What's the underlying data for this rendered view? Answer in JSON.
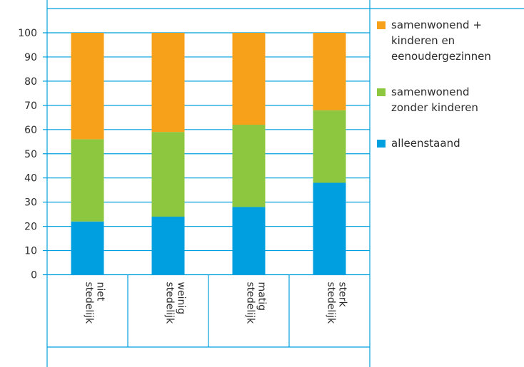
{
  "chart_data": {
    "type": "bar",
    "stacked": true,
    "categories": [
      [
        "niet",
        "stedelijk"
      ],
      [
        "weinig",
        "stedelijk"
      ],
      [
        "matig",
        "stedelijk"
      ],
      [
        "sterk",
        "stedelijk"
      ]
    ],
    "series": [
      {
        "name": "alleenstaand",
        "legend_lines": [
          "alleenstaand"
        ],
        "color": "#009fdf",
        "values": [
          22,
          24,
          28,
          38
        ]
      },
      {
        "name": "samenwonend zonder kinderen",
        "legend_lines": [
          "samenwonend",
          "zonder kinderen"
        ],
        "color": "#8dc63f",
        "values": [
          34,
          35,
          34,
          30
        ]
      },
      {
        "name": "samenwonend + kinderen en eenoudergezinnen",
        "legend_lines": [
          "samenwonend +",
          "kinderen en",
          "eenoudergezinnen"
        ],
        "color": "#f7a11a",
        "values": [
          44,
          41,
          38,
          32
        ]
      }
    ],
    "ylim": [
      0,
      100
    ],
    "yticks": [
      0,
      10,
      20,
      30,
      40,
      50,
      60,
      70,
      80,
      90,
      100
    ],
    "grid": true,
    "legend": "right",
    "grid_color": "#009fdf"
  }
}
